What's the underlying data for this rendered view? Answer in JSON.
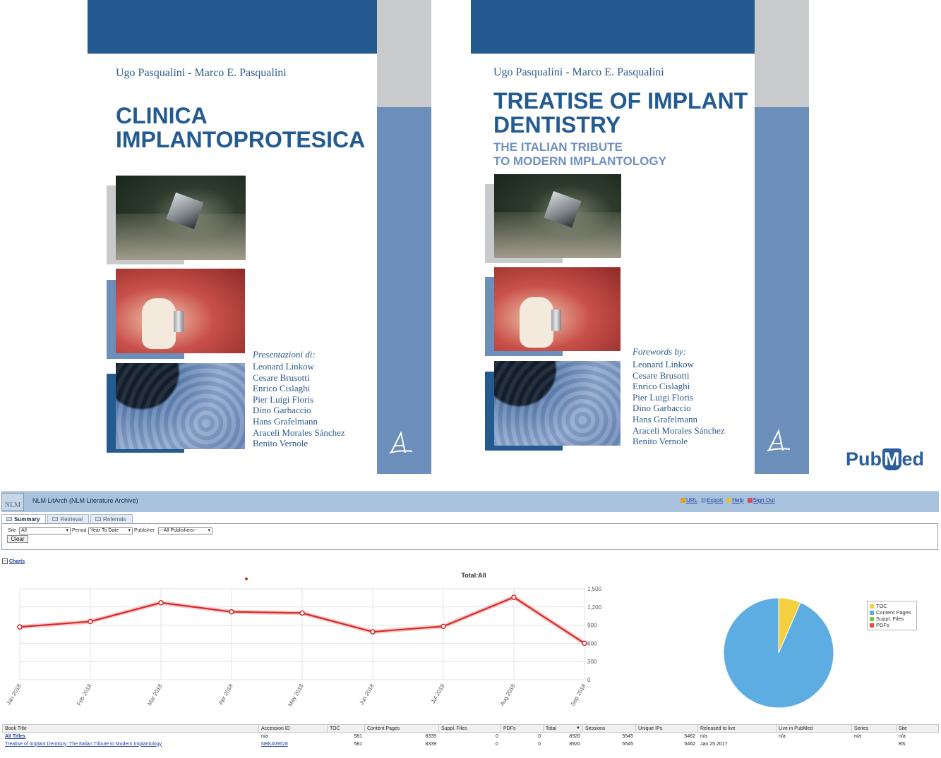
{
  "covers": [
    {
      "authors": "Ugo Pasqualini - Marco E. Pasqualini",
      "title_lines": [
        "CLINICA",
        "IMPLANTOPROTESICA"
      ],
      "subtitle_lines": [],
      "forewords_heading": "Presentazioni di:",
      "forewords": [
        "Leonard Linkow",
        "Cesare Brusotti",
        "Enrico Cislaghi",
        "Pier Luigi Floris",
        "Dino Garbaccio",
        "Hans Grafelmann",
        "Araceli Morales Sánchez",
        "Benito Vernole"
      ]
    },
    {
      "authors": "Ugo Pasqualini - Marco E. Pasqualini",
      "title_lines": [
        "TREATISE OF IMPLANT",
        "DENTISTRY"
      ],
      "subtitle_lines": [
        "THE ITALIAN TRIBUTE",
        "TO MODERN IMPLANTOLOGY"
      ],
      "forewords_heading": "Forewords by:",
      "forewords": [
        "Leonard Linkow",
        "Cesare Brusotti",
        "Enrico Cislaghi",
        "Pier Luigi Floris",
        "Dino Garbaccio",
        "Hans Grafelmann",
        "Araceli Morales Sánchez",
        "Benito Vernole"
      ]
    }
  ],
  "pubmed_logo": {
    "pre": "Pub",
    "m": "M",
    "post": "ed"
  },
  "app": {
    "logo_text": "NLM",
    "title": "NLM LitArch (NLM Literature Archive)",
    "top_links": [
      {
        "label": "URL",
        "icon_color": "#e0a020"
      },
      {
        "label": "Export",
        "icon_color": "#8aa0c0"
      },
      {
        "label": "Help",
        "icon_color": "#e8c030"
      },
      {
        "label": "Sign Out",
        "icon_color": "#d05050"
      }
    ],
    "tabs": [
      {
        "label": "Summary",
        "active": true
      },
      {
        "label": "Retrieval",
        "active": false
      },
      {
        "label": "Referrals",
        "active": false
      }
    ],
    "filters": {
      "site_label": "Site",
      "site_value": "All",
      "period_label": "Period",
      "period_value": "Year To Date",
      "publisher_label": "Publisher",
      "publisher_value": "--All Publishers--",
      "clear_label": "Clear"
    },
    "charts_toggle": {
      "symbol": "−",
      "label": "Charts"
    }
  },
  "chart_data": [
    {
      "type": "line",
      "title": "Total:All",
      "categories": [
        "Jan 2018",
        "Feb 2018",
        "Mar 2018",
        "Apr 2018",
        "May 2018",
        "Jun 2018",
        "Jul 2018",
        "Aug 2018",
        "Sep 2018"
      ],
      "values": [
        870,
        960,
        1270,
        1120,
        1100,
        790,
        880,
        1360,
        600
      ],
      "yticks": [
        0,
        300,
        600,
        900,
        1200,
        1500
      ],
      "ytick_labels": [
        "0",
        "300",
        "600",
        "900",
        "1,200",
        "1,500"
      ],
      "ylim": [
        0,
        1500
      ],
      "line_color": "#d42a2a",
      "grid": true
    },
    {
      "type": "pie",
      "slices": [
        {
          "name": "TOC",
          "value": 581,
          "color": "#f4d03f"
        },
        {
          "name": "Content Pages",
          "value": 8339,
          "color": "#5dade2"
        },
        {
          "name": "Suppl. Files",
          "value": 0,
          "color": "#82c341"
        },
        {
          "name": "PDFs",
          "value": 0,
          "color": "#e74c3c"
        }
      ],
      "legend": "right"
    }
  ],
  "table": {
    "columns": [
      "Book Title",
      "Accession ID",
      "TOC",
      "Content Pages",
      "Suppl. Files",
      "PDFs",
      "Total",
      "Sessions",
      "Unique IPs",
      "Released to live",
      "Live in PubMed",
      "Series",
      "Site"
    ],
    "sort_indicator": "▼",
    "rows": [
      {
        "cells": [
          "All Titles",
          "n/a",
          "581",
          "8339",
          "0",
          "0",
          "8920",
          "5545",
          "5462",
          "n/a",
          "n/a",
          "n/a",
          "n/a"
        ],
        "link_cols": [
          0
        ],
        "type": "all"
      },
      {
        "cells": [
          "Treatise of Implant Dentistry: The Italian Tribute to Modern Implantology",
          "NBK409628",
          "581",
          "8339",
          "0",
          "0",
          "8920",
          "5545",
          "5462",
          "Jan 25 2017",
          "",
          "",
          "BS"
        ],
        "link_cols": [
          0,
          1
        ],
        "type": "item"
      }
    ]
  }
}
